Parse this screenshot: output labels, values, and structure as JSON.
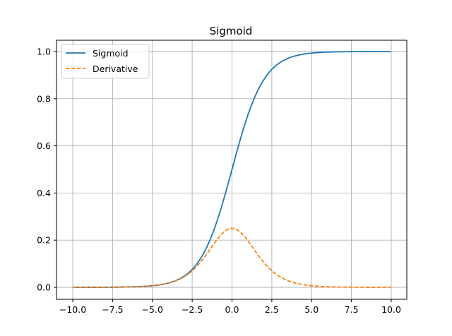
{
  "chart_data": {
    "type": "line",
    "title": "Sigmoid",
    "xlabel": "",
    "ylabel": "",
    "xlim": [
      -10.0,
      10.0
    ],
    "ylim": [
      0.0,
      1.0
    ],
    "x_ticks": [
      -10.0,
      -7.5,
      -5.0,
      -2.5,
      0.0,
      2.5,
      5.0,
      7.5,
      10.0
    ],
    "x_tick_labels": [
      "−10.0",
      "−7.5",
      "−5.0",
      "−2.5",
      "0.0",
      "2.5",
      "5.0",
      "7.5",
      "10.0"
    ],
    "y_ticks": [
      0.0,
      0.2,
      0.4,
      0.6,
      0.8,
      1.0
    ],
    "y_tick_labels": [
      "0.0",
      "0.2",
      "0.4",
      "0.6",
      "0.8",
      "1.0"
    ],
    "grid": true,
    "legend_position": "top-left",
    "x": [
      -10.0,
      -9.0,
      -8.0,
      -7.0,
      -6.0,
      -5.0,
      -4.5,
      -4.0,
      -3.5,
      -3.0,
      -2.5,
      -2.0,
      -1.5,
      -1.0,
      -0.5,
      0.0,
      0.5,
      1.0,
      1.5,
      2.0,
      2.5,
      3.0,
      3.5,
      4.0,
      4.5,
      5.0,
      6.0,
      7.0,
      8.0,
      9.0,
      10.0
    ],
    "series": [
      {
        "name": "Sigmoid",
        "color": "#1f77b4",
        "style": "solid",
        "values": [
          0.0,
          0.0001,
          0.0003,
          0.0009,
          0.0025,
          0.0067,
          0.011,
          0.018,
          0.0293,
          0.0474,
          0.0759,
          0.1192,
          0.1824,
          0.2689,
          0.3775,
          0.5,
          0.6225,
          0.7311,
          0.8176,
          0.8808,
          0.9241,
          0.9526,
          0.9707,
          0.982,
          0.989,
          0.9933,
          0.9975,
          0.9991,
          0.9997,
          0.9999,
          1.0
        ]
      },
      {
        "name": "Derivative",
        "color": "#ff7f0e",
        "style": "dashed",
        "values": [
          0.0,
          0.0001,
          0.0003,
          0.0009,
          0.0025,
          0.0066,
          0.0109,
          0.0177,
          0.0285,
          0.0452,
          0.0701,
          0.105,
          0.1491,
          0.1966,
          0.235,
          0.25,
          0.235,
          0.1966,
          0.1491,
          0.105,
          0.0701,
          0.0452,
          0.0285,
          0.0177,
          0.0109,
          0.0066,
          0.0025,
          0.0009,
          0.0003,
          0.0001,
          0.0
        ]
      }
    ]
  }
}
